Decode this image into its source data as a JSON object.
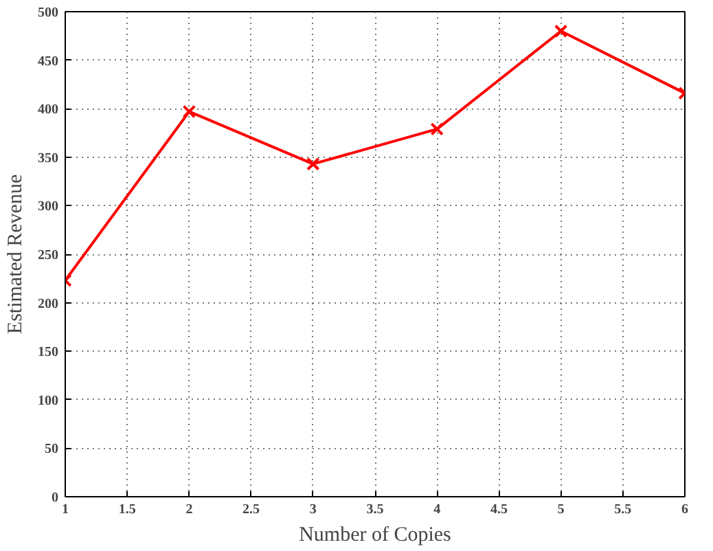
{
  "chart_data": {
    "type": "line",
    "xlabel": "Number of Copies",
    "ylabel": "Estimated Revenue",
    "x": [
      1,
      2,
      3,
      4,
      5,
      6
    ],
    "series": [
      {
        "color": "#ff0000",
        "values": [
          223,
          397,
          343,
          379,
          480,
          416
        ]
      }
    ],
    "xlim": [
      1,
      6
    ],
    "xticks": [
      1,
      1.5,
      2,
      2.5,
      3,
      3.5,
      4,
      4.5,
      5,
      5.5,
      6
    ],
    "ylim": [
      0,
      500
    ],
    "yticks": [
      0,
      50,
      100,
      150,
      200,
      250,
      300,
      350,
      400,
      450,
      500
    ],
    "grid": true,
    "marker": "cross",
    "line_style": "solid"
  }
}
